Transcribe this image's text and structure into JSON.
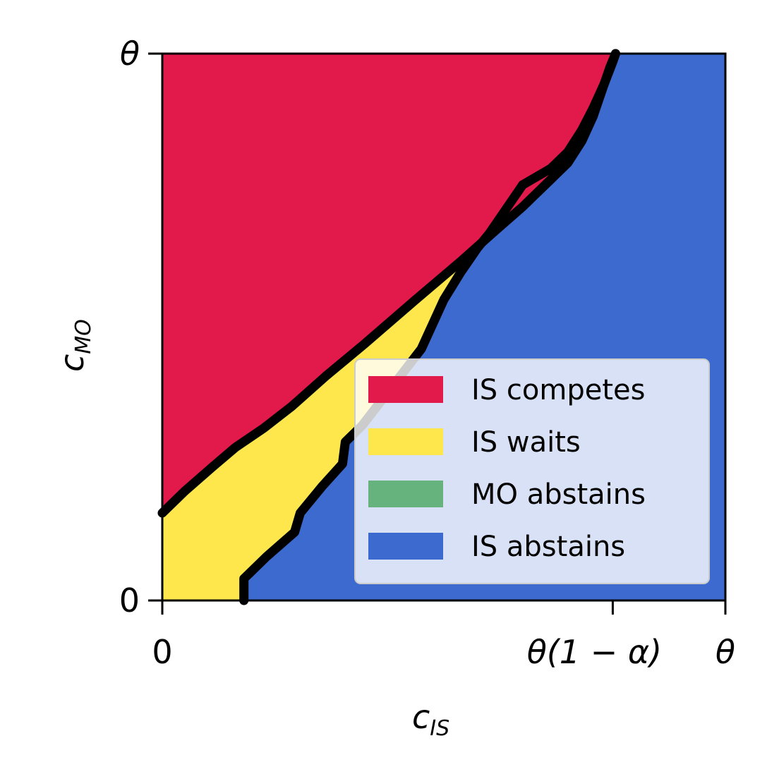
{
  "chart_data": {
    "type": "area",
    "title": "",
    "xlabel": "c",
    "xlabel_sub": "IS",
    "ylabel": "c",
    "ylabel_sub": "MO",
    "xlim": [
      0,
      1
    ],
    "ylim": [
      0,
      1
    ],
    "x_ticks": [
      {
        "value": 0,
        "label": "0"
      },
      {
        "value": 0.8,
        "label": "θ(1 − α)"
      },
      {
        "value": 1,
        "label": "θ"
      }
    ],
    "y_ticks": [
      {
        "value": 0,
        "label": "0"
      },
      {
        "value": 1,
        "label": "θ"
      }
    ],
    "grid": false,
    "legend_position": "lower-right",
    "regions": [
      {
        "name": "IS competes",
        "color": "#E2194B"
      },
      {
        "name": "IS waits",
        "color": "#FDE74C"
      },
      {
        "name": "MO abstains",
        "color": "#66B37E"
      },
      {
        "name": "IS abstains",
        "color": "#3C6ACE"
      }
    ],
    "boundaries": {
      "competes_waits": [
        [
          0,
          0.16
        ],
        [
          0.04,
          0.2
        ],
        [
          0.09,
          0.245
        ],
        [
          0.13,
          0.28
        ],
        [
          0.18,
          0.315
        ],
        [
          0.23,
          0.355
        ],
        [
          0.29,
          0.41
        ],
        [
          0.36,
          0.47
        ],
        [
          0.45,
          0.55
        ],
        [
          0.53,
          0.62
        ],
        [
          0.59,
          0.675
        ],
        [
          0.64,
          0.72
        ],
        [
          0.69,
          0.77
        ],
        [
          0.72,
          0.8
        ],
        [
          0.745,
          0.84
        ],
        [
          0.765,
          0.885
        ],
        [
          0.78,
          0.93
        ],
        [
          0.795,
          0.975
        ],
        [
          0.805,
          1.0
        ]
      ],
      "waits_abstains": [
        [
          0.145,
          0
        ],
        [
          0.145,
          0.04
        ],
        [
          0.155,
          0.05
        ],
        [
          0.185,
          0.08
        ],
        [
          0.235,
          0.125
        ],
        [
          0.245,
          0.16
        ],
        [
          0.285,
          0.21
        ],
        [
          0.32,
          0.25
        ],
        [
          0.325,
          0.29
        ],
        [
          0.355,
          0.32
        ],
        [
          0.43,
          0.42
        ],
        [
          0.46,
          0.46
        ],
        [
          0.5,
          0.55
        ],
        [
          0.53,
          0.6
        ],
        [
          0.56,
          0.645
        ],
        [
          0.58,
          0.67
        ],
        [
          0.6,
          0.7
        ],
        [
          0.64,
          0.76
        ]
      ],
      "competes_abstains": [
        [
          0.64,
          0.76
        ],
        [
          0.69,
          0.79
        ],
        [
          0.72,
          0.82
        ],
        [
          0.745,
          0.86
        ],
        [
          0.765,
          0.9
        ],
        [
          0.785,
          0.945
        ],
        [
          0.8,
          0.985
        ],
        [
          0.805,
          1.0
        ]
      ]
    }
  }
}
